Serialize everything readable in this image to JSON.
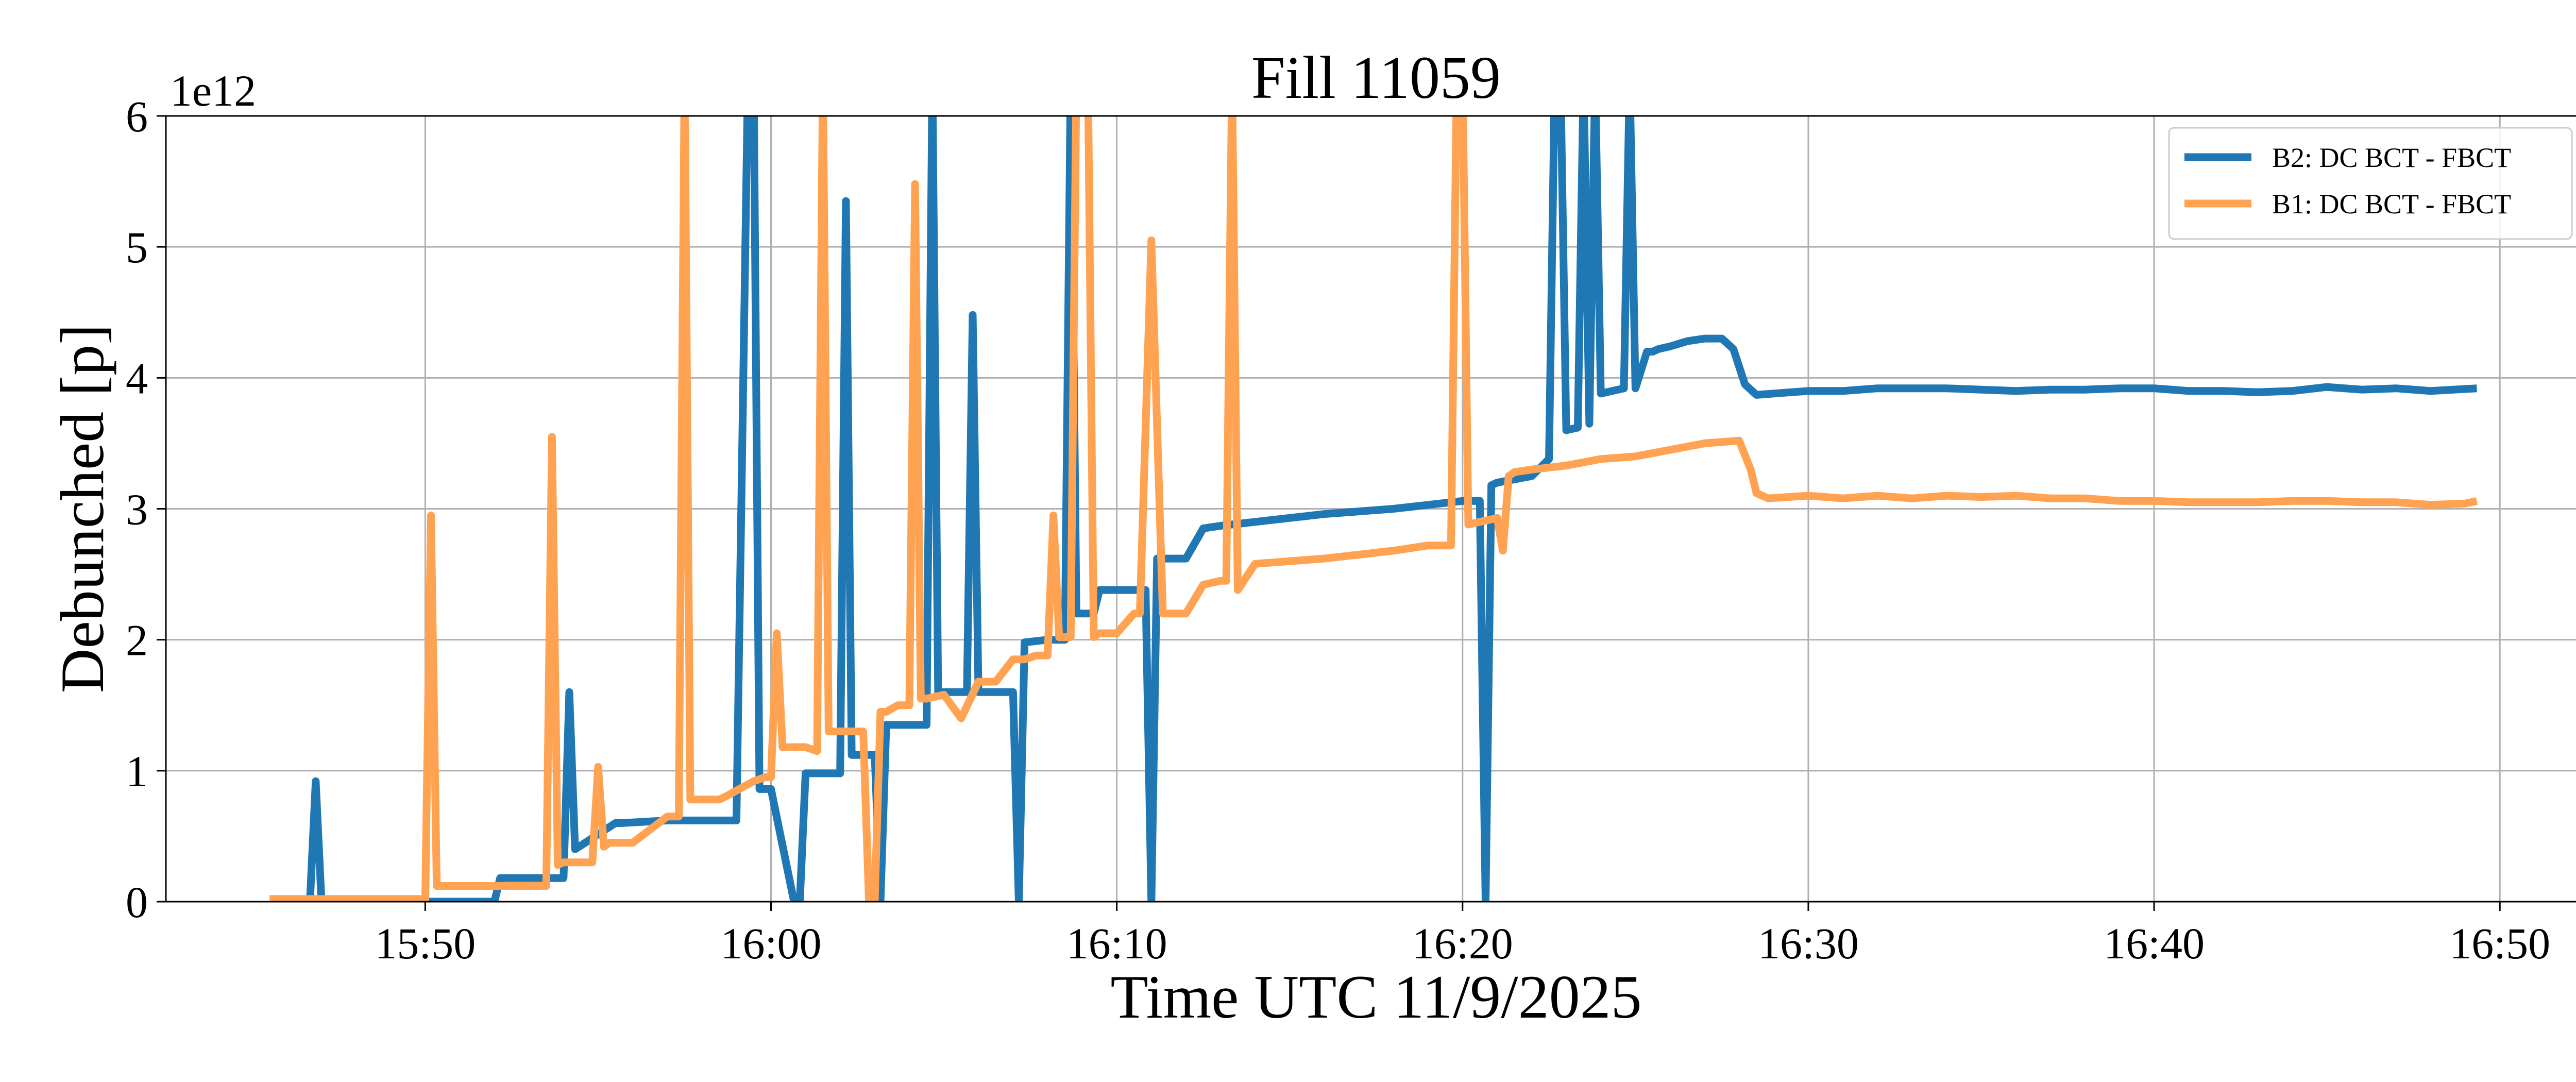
{
  "chart_data": {
    "type": "line",
    "title": "Fill 11059",
    "xlabel": "Time UTC 11/9/2025",
    "ylabel": "Debunched [p]",
    "y_scale_label": "1e12",
    "x_unit": "minutes",
    "xlim": [
      "15:42:30",
      "16:52:30"
    ],
    "ylim": [
      0,
      6
    ],
    "x_ticks": [
      "15:50",
      "16:00",
      "16:10",
      "16:20",
      "16:30",
      "16:40",
      "16:50"
    ],
    "y_ticks": [
      "0",
      "1",
      "2",
      "3",
      "4",
      "5",
      "6"
    ],
    "grid": true,
    "legend_position": "upper right",
    "series": [
      {
        "name": "B2: DC BCT - FBCT",
        "color": "#1f77b4",
        "x": [
          "15:45:30",
          "15:46:40",
          "15:46:50",
          "15:47:00",
          "15:48:00",
          "15:50:00",
          "15:52:00",
          "15:52:10",
          "15:54:00",
          "15:54:10",
          "15:54:20",
          "15:55:30",
          "15:55:40",
          "15:57:00",
          "15:59:00",
          "15:59:20",
          "15:59:30",
          "15:59:40",
          "16:00:00",
          "16:00:40",
          "16:00:50",
          "16:01:00",
          "16:02:00",
          "16:02:10",
          "16:02:20",
          "16:03:00",
          "16:03:10",
          "16:03:20",
          "16:04:30",
          "16:04:40",
          "16:04:50",
          "16:05:40",
          "16:05:50",
          "16:06:00",
          "16:06:30",
          "16:07:00",
          "16:07:10",
          "16:07:20",
          "16:08:00",
          "16:08:30",
          "16:08:40",
          "16:08:50",
          "16:09:20",
          "16:09:30",
          "16:10:00",
          "16:10:50",
          "16:11:00",
          "16:11:10",
          "16:11:20",
          "16:12:00",
          "16:12:30",
          "16:13:00",
          "16:14:00",
          "16:15:00",
          "16:16:00",
          "16:17:00",
          "16:18:00",
          "16:19:00",
          "16:20:00",
          "16:20:30",
          "16:20:40",
          "16:20:50",
          "16:21:00",
          "16:22:00",
          "16:22:30",
          "16:22:40",
          "16:22:50",
          "16:23:00",
          "16:23:20",
          "16:23:30",
          "16:23:40",
          "16:23:50",
          "16:24:00",
          "16:24:40",
          "16:24:50",
          "16:25:00",
          "16:25:20",
          "16:25:30",
          "16:25:40",
          "16:26:00",
          "16:26:30",
          "16:27:00",
          "16:27:30",
          "16:27:50",
          "16:28:10",
          "16:28:30",
          "16:29:00",
          "16:30:00",
          "16:31:00",
          "16:32:00",
          "16:33:00",
          "16:34:00",
          "16:35:00",
          "16:36:00",
          "16:37:00",
          "16:38:00",
          "16:39:00",
          "16:40:00",
          "16:41:00",
          "16:42:00",
          "16:43:00",
          "16:44:00",
          "16:45:00",
          "16:46:00",
          "16:47:00",
          "16:48:00",
          "16:49:20"
        ],
        "y": [
          0,
          0,
          0.92,
          0,
          0,
          0,
          0,
          0.18,
          0.18,
          1.6,
          0.4,
          0.6,
          0.6,
          0.62,
          0.62,
          6.3,
          6.3,
          0.86,
          0.86,
          0,
          0,
          0.98,
          0.98,
          5.35,
          1.12,
          1.12,
          0,
          1.35,
          1.35,
          6.3,
          1.6,
          1.6,
          4.48,
          1.6,
          1.6,
          1.6,
          0,
          1.98,
          2.0,
          2.0,
          6.3,
          2.2,
          2.2,
          2.38,
          2.38,
          2.38,
          0,
          2.62,
          2.62,
          2.62,
          2.85,
          2.87,
          2.9,
          2.93,
          2.96,
          2.98,
          3.0,
          3.03,
          3.06,
          3.06,
          0,
          3.18,
          3.2,
          3.25,
          3.38,
          6.3,
          6.3,
          3.6,
          3.62,
          6.3,
          3.65,
          6.3,
          3.88,
          3.92,
          6.3,
          3.92,
          4.2,
          4.2,
          4.22,
          4.24,
          4.28,
          4.3,
          4.3,
          4.22,
          3.95,
          3.87,
          3.88,
          3.9,
          3.9,
          3.92,
          3.92,
          3.92,
          3.91,
          3.9,
          3.91,
          3.91,
          3.92,
          3.92,
          3.9,
          3.9,
          3.89,
          3.9,
          3.93,
          3.91,
          3.92,
          3.9,
          3.92
        ]
      },
      {
        "name": "B1: DC BCT - FBCT",
        "color": "#ffa352",
        "x": [
          "15:45:30",
          "15:50:00",
          "15:50:10",
          "15:50:20",
          "15:52:00",
          "15:53:00",
          "15:53:30",
          "15:53:40",
          "15:53:50",
          "15:54:00",
          "15:54:50",
          "15:55:00",
          "15:55:10",
          "15:55:20",
          "15:56:00",
          "15:57:00",
          "15:57:10",
          "15:57:20",
          "15:57:30",
          "15:57:40",
          "15:58:30",
          "15:58:40",
          "15:59:30",
          "15:59:50",
          "16:00:00",
          "16:00:10",
          "16:00:20",
          "16:01:00",
          "16:01:20",
          "16:01:30",
          "16:01:40",
          "16:02:10",
          "16:02:40",
          "16:02:50",
          "16:03:00",
          "16:03:10",
          "16:03:20",
          "16:03:40",
          "16:04:00",
          "16:04:10",
          "16:04:20",
          "16:04:30",
          "16:05:00",
          "16:05:30",
          "16:06:00",
          "16:06:30",
          "16:07:00",
          "16:07:20",
          "16:07:40",
          "16:08:00",
          "16:08:10",
          "16:08:20",
          "16:08:30",
          "16:08:40",
          "16:08:50",
          "16:09:10",
          "16:09:20",
          "16:09:30",
          "16:10:00",
          "16:10:30",
          "16:10:40",
          "16:11:00",
          "16:11:20",
          "16:12:00",
          "16:12:30",
          "16:13:00",
          "16:13:10",
          "16:13:20",
          "16:13:30",
          "16:14:00",
          "16:15:00",
          "16:16:00",
          "16:17:00",
          "16:18:00",
          "16:19:00",
          "16:19:40",
          "16:19:50",
          "16:20:00",
          "16:20:10",
          "16:20:30",
          "16:21:00",
          "16:21:10",
          "16:21:20",
          "16:21:30",
          "16:22:00",
          "16:23:00",
          "16:24:00",
          "16:25:00",
          "16:26:00",
          "16:27:00",
          "16:28:00",
          "16:28:20",
          "16:28:30",
          "16:28:50",
          "16:30:00",
          "16:31:00",
          "16:32:00",
          "16:33:00",
          "16:34:00",
          "16:35:00",
          "16:36:00",
          "16:37:00",
          "16:38:00",
          "16:39:00",
          "16:40:00",
          "16:41:00",
          "16:42:00",
          "16:43:00",
          "16:44:00",
          "16:45:00",
          "16:46:00",
          "16:47:00",
          "16:48:00",
          "16:49:00",
          "16:49:20"
        ],
        "y": [
          0.02,
          0.02,
          2.95,
          0.12,
          0.12,
          0.12,
          0.12,
          3.55,
          0.28,
          0.3,
          0.3,
          1.03,
          0.42,
          0.45,
          0.45,
          0.65,
          0.65,
          0.65,
          6.3,
          0.78,
          0.78,
          0.8,
          0.92,
          0.95,
          0.95,
          2.05,
          1.18,
          1.18,
          1.15,
          6.3,
          1.3,
          1.3,
          1.3,
          0,
          0,
          1.45,
          1.45,
          1.5,
          1.5,
          5.48,
          1.55,
          1.55,
          1.58,
          1.4,
          1.68,
          1.68,
          1.85,
          1.85,
          1.88,
          1.88,
          2.95,
          2.02,
          2.02,
          2.02,
          6.3,
          6.3,
          2.02,
          2.05,
          2.05,
          2.2,
          2.2,
          5.05,
          2.2,
          2.2,
          2.42,
          2.45,
          2.45,
          6.3,
          2.38,
          2.58,
          2.6,
          2.62,
          2.65,
          2.68,
          2.72,
          2.72,
          6.3,
          6.3,
          2.88,
          2.9,
          2.93,
          2.68,
          3.25,
          3.28,
          3.3,
          3.33,
          3.38,
          3.4,
          3.45,
          3.5,
          3.52,
          3.3,
          3.12,
          3.08,
          3.1,
          3.08,
          3.1,
          3.08,
          3.1,
          3.09,
          3.1,
          3.08,
          3.08,
          3.06,
          3.06,
          3.05,
          3.05,
          3.05,
          3.06,
          3.06,
          3.05,
          3.05,
          3.03,
          3.04,
          3.06
        ]
      }
    ]
  }
}
